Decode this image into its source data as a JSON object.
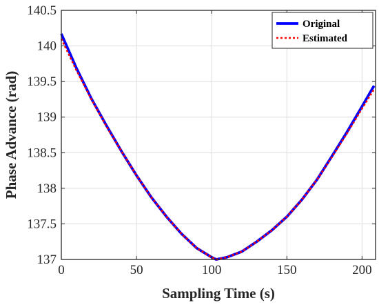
{
  "chart_data": {
    "type": "line",
    "title": "",
    "xlabel": "Sampling Time (s)",
    "ylabel": "Phase Advance (rad)",
    "xlim": [
      0,
      209
    ],
    "ylim": [
      137,
      140.5
    ],
    "xticks": [
      0,
      50,
      100,
      150,
      200
    ],
    "xtick_labels": [
      "0",
      "50",
      "100",
      "150",
      "200"
    ],
    "yticks": [
      137,
      137.5,
      138,
      138.5,
      139,
      139.5,
      140,
      140.5
    ],
    "ytick_labels": [
      "137",
      "137.5",
      "138",
      "138.5",
      "139",
      "139.5",
      "140",
      "140.5"
    ],
    "grid": true,
    "legend_position": "top-right",
    "series": [
      {
        "name": "Original",
        "color": "#0000ff",
        "style": "solid",
        "x": [
          0,
          10,
          20,
          30,
          40,
          50,
          60,
          70,
          80,
          90,
          100,
          103,
          110,
          120,
          130,
          140,
          150,
          160,
          170,
          180,
          190,
          200,
          208
        ],
        "y": [
          140.17,
          139.69,
          139.26,
          138.88,
          138.52,
          138.18,
          137.87,
          137.6,
          137.36,
          137.16,
          137.03,
          137.0,
          137.03,
          137.11,
          137.25,
          137.41,
          137.6,
          137.84,
          138.12,
          138.45,
          138.79,
          139.15,
          139.44
        ]
      },
      {
        "name": "Estimated",
        "color": "#ff0000",
        "style": "dotted",
        "x": [
          0,
          10,
          20,
          30,
          40,
          50,
          60,
          70,
          80,
          90,
          100,
          103,
          110,
          120,
          130,
          140,
          150,
          160,
          170,
          180,
          190,
          200,
          208
        ],
        "y": [
          140.1,
          139.66,
          139.25,
          138.87,
          138.52,
          138.18,
          137.87,
          137.6,
          137.36,
          137.16,
          137.03,
          137.0,
          137.03,
          137.11,
          137.25,
          137.41,
          137.6,
          137.84,
          138.12,
          138.44,
          138.77,
          139.12,
          139.39
        ]
      }
    ]
  }
}
